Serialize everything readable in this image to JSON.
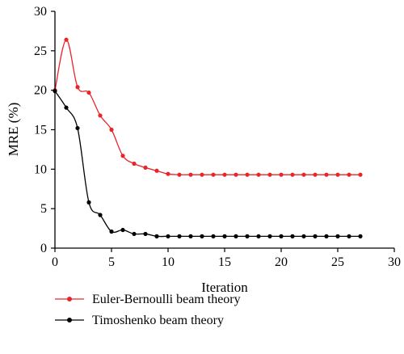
{
  "chart_data": {
    "type": "line",
    "xlabel": "Iteration",
    "ylabel": "MRE (%)",
    "xlim": [
      0,
      30
    ],
    "ylim": [
      0,
      30
    ],
    "xticks": [
      0,
      5,
      10,
      15,
      20,
      25,
      30
    ],
    "yticks": [
      0,
      5,
      10,
      15,
      20,
      25,
      30
    ],
    "grid": false,
    "legend_position": "bottom",
    "series": [
      {
        "name": "Euler-Bernoulli beam theory",
        "color": "#e8262a",
        "x": [
          0,
          1,
          2,
          3,
          4,
          5,
          6,
          7,
          8,
          9,
          10,
          11,
          12,
          13,
          14,
          15,
          16,
          17,
          18,
          19,
          20,
          21,
          22,
          23,
          24,
          25,
          26,
          27
        ],
        "y": [
          20.0,
          26.4,
          20.4,
          19.7,
          16.8,
          15.0,
          11.7,
          10.7,
          10.2,
          9.8,
          9.4,
          9.3,
          9.3,
          9.3,
          9.3,
          9.3,
          9.3,
          9.3,
          9.3,
          9.3,
          9.3,
          9.3,
          9.3,
          9.3,
          9.3,
          9.3,
          9.3,
          9.3
        ]
      },
      {
        "name": "Timoshenko beam theory",
        "color": "#000000",
        "x": [
          0,
          1,
          2,
          3,
          4,
          5,
          6,
          7,
          8,
          9,
          10,
          11,
          12,
          13,
          14,
          15,
          16,
          17,
          18,
          19,
          20,
          21,
          22,
          23,
          24,
          25,
          26,
          27
        ],
        "y": [
          19.9,
          17.8,
          15.2,
          5.8,
          4.2,
          2.1,
          2.3,
          1.8,
          1.8,
          1.5,
          1.5,
          1.5,
          1.5,
          1.5,
          1.5,
          1.5,
          1.5,
          1.5,
          1.5,
          1.5,
          1.5,
          1.5,
          1.5,
          1.5,
          1.5,
          1.5,
          1.5,
          1.5
        ]
      }
    ]
  }
}
